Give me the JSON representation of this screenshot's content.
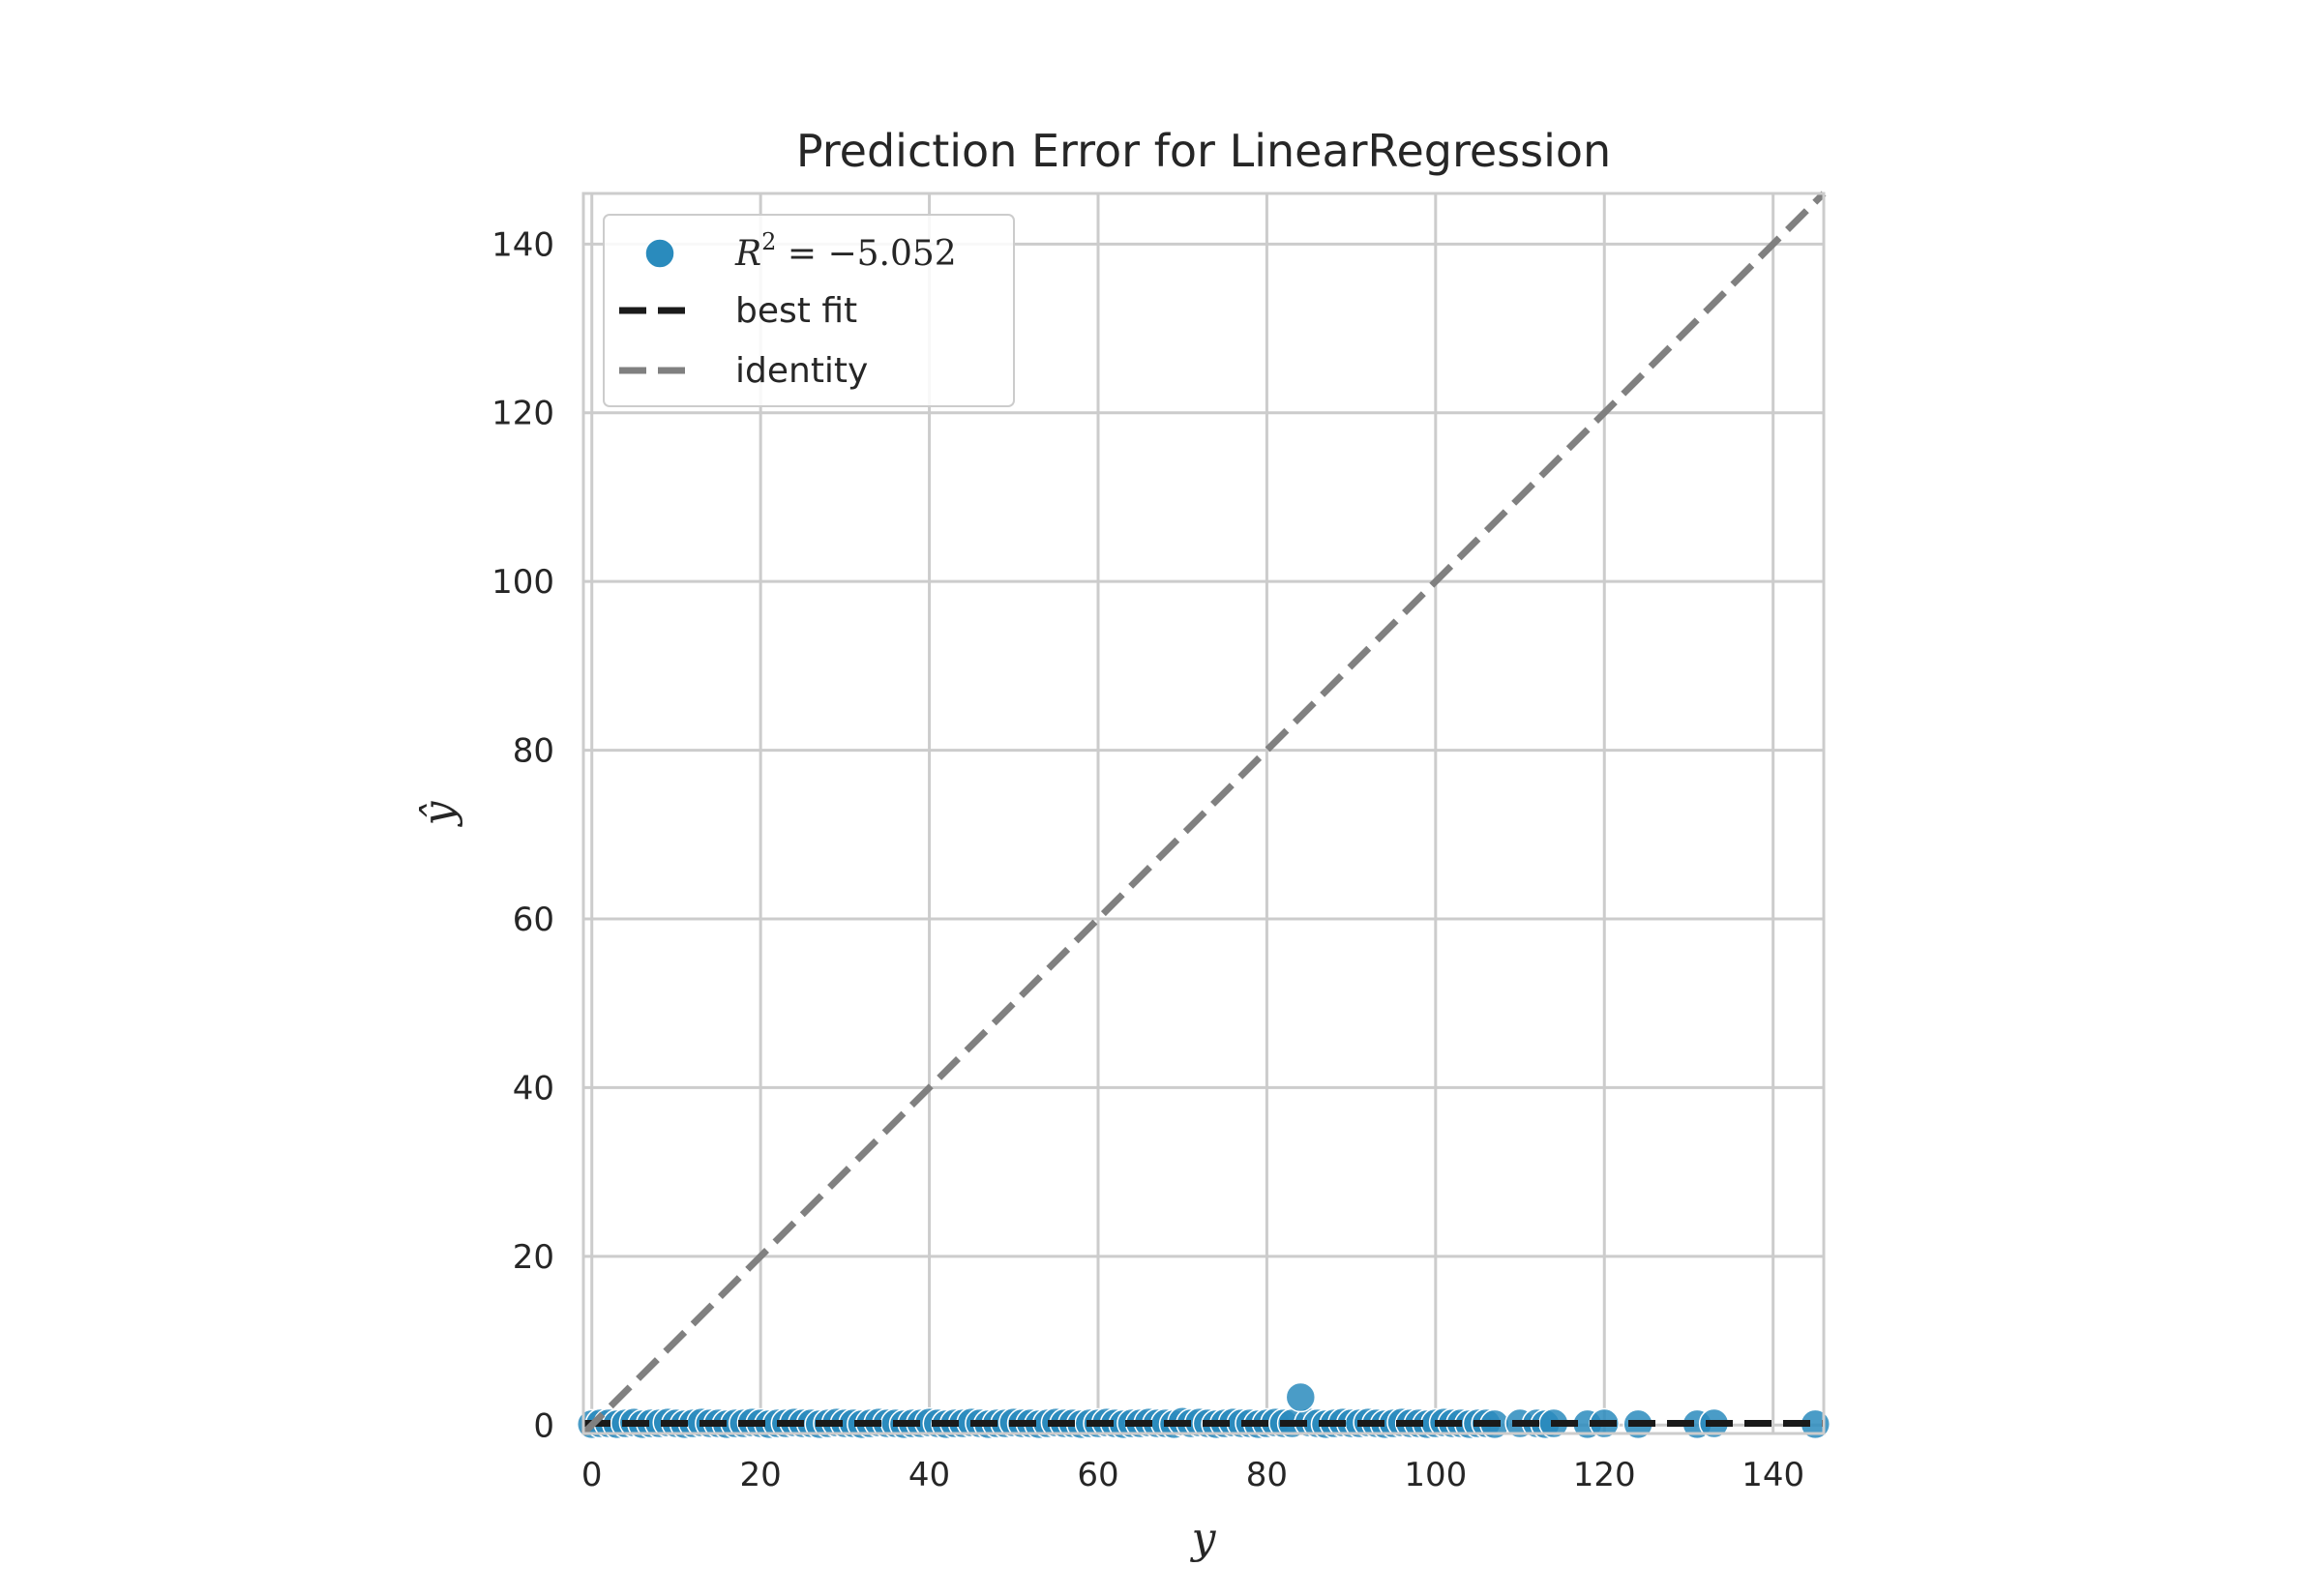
{
  "chart_data": {
    "type": "scatter",
    "title": "Prediction Error for LinearRegression",
    "xlabel": "y",
    "ylabel": "ŷ",
    "xlim": [
      -1,
      146
    ],
    "ylim": [
      -1,
      146
    ],
    "xticks": [
      0,
      20,
      40,
      60,
      80,
      100,
      120,
      140
    ],
    "yticks": [
      0,
      20,
      40,
      60,
      80,
      100,
      120,
      140
    ],
    "grid": true,
    "legend": {
      "position": "top-left",
      "entries": [
        {
          "label_prefix": "R",
          "label_superscript": "2",
          "label_suffix": " = −5.052",
          "marker": "circle",
          "color": "#2a8bbd"
        },
        {
          "label": "best fit",
          "style": "dashed",
          "color": "#1a1a1a"
        },
        {
          "label": "identity",
          "style": "dashed",
          "color": "#808080"
        }
      ]
    },
    "series": [
      {
        "name": "R² = −5.052",
        "color": "#2a8bbd",
        "x": [
          0,
          1,
          2,
          3,
          4,
          5,
          6,
          7,
          8,
          9,
          10,
          11,
          12,
          13,
          14,
          15,
          16,
          17,
          18,
          19,
          20,
          21,
          22,
          23,
          24,
          25,
          26,
          27,
          28,
          29,
          30,
          31,
          32,
          33,
          34,
          35,
          36,
          37,
          38,
          39,
          40,
          41,
          42,
          43,
          44,
          45,
          46,
          47,
          48,
          49,
          50,
          51,
          52,
          53,
          54,
          55,
          56,
          57,
          58,
          59,
          60,
          61,
          62,
          63,
          64,
          65,
          66,
          67,
          68,
          69,
          70,
          71,
          72,
          73,
          74,
          75,
          76,
          77,
          78,
          79,
          80,
          81,
          82,
          83,
          85,
          86,
          87,
          88,
          89,
          90,
          91,
          92,
          93,
          94,
          95,
          96,
          97,
          98,
          99,
          100,
          101,
          102,
          103,
          104,
          105,
          106,
          107,
          110,
          112,
          113,
          114,
          118,
          120,
          124,
          131,
          133,
          145,
          84
        ],
        "y": [
          0.1,
          0.2,
          0.2,
          0.1,
          0.2,
          0.3,
          0.1,
          0.2,
          0.2,
          0.3,
          0.2,
          0.1,
          0.2,
          0.3,
          0.2,
          0.2,
          0.1,
          0.2,
          0.2,
          0.3,
          0.2,
          0.1,
          0.2,
          0.2,
          0.3,
          0.2,
          0.2,
          0.1,
          0.2,
          0.3,
          0.2,
          0.2,
          0.1,
          0.2,
          0.3,
          0.2,
          0.2,
          0.1,
          0.2,
          0.2,
          0.3,
          0.2,
          0.1,
          0.2,
          0.2,
          0.3,
          0.2,
          0.1,
          0.2,
          0.2,
          0.3,
          0.2,
          0.2,
          0.1,
          0.2,
          0.3,
          0.2,
          0.2,
          0.1,
          0.2,
          0.2,
          0.3,
          0.2,
          0.1,
          0.2,
          0.2,
          0.3,
          0.2,
          0.2,
          0.1,
          0.4,
          0.2,
          0.3,
          0.2,
          0.1,
          0.2,
          0.3,
          0.2,
          0.2,
          0.1,
          0.2,
          0.3,
          0.2,
          0.2,
          0.3,
          0.2,
          0.1,
          0.2,
          0.3,
          0.2,
          0.2,
          0.3,
          0.2,
          0.1,
          0.2,
          0.3,
          0.2,
          0.2,
          0.1,
          0.2,
          0.3,
          0.2,
          0.2,
          0.1,
          0.2,
          0.2,
          0.1,
          0.2,
          0.2,
          0.1,
          0.2,
          0.1,
          0.2,
          0.1,
          0.1,
          0.2,
          0.1,
          3.3
        ]
      }
    ],
    "best_fit": {
      "x": [
        -1,
        146
      ],
      "y": [
        0.2,
        0.2
      ]
    },
    "identity": {
      "x": [
        -1,
        146
      ],
      "y": [
        -1,
        146
      ]
    }
  }
}
